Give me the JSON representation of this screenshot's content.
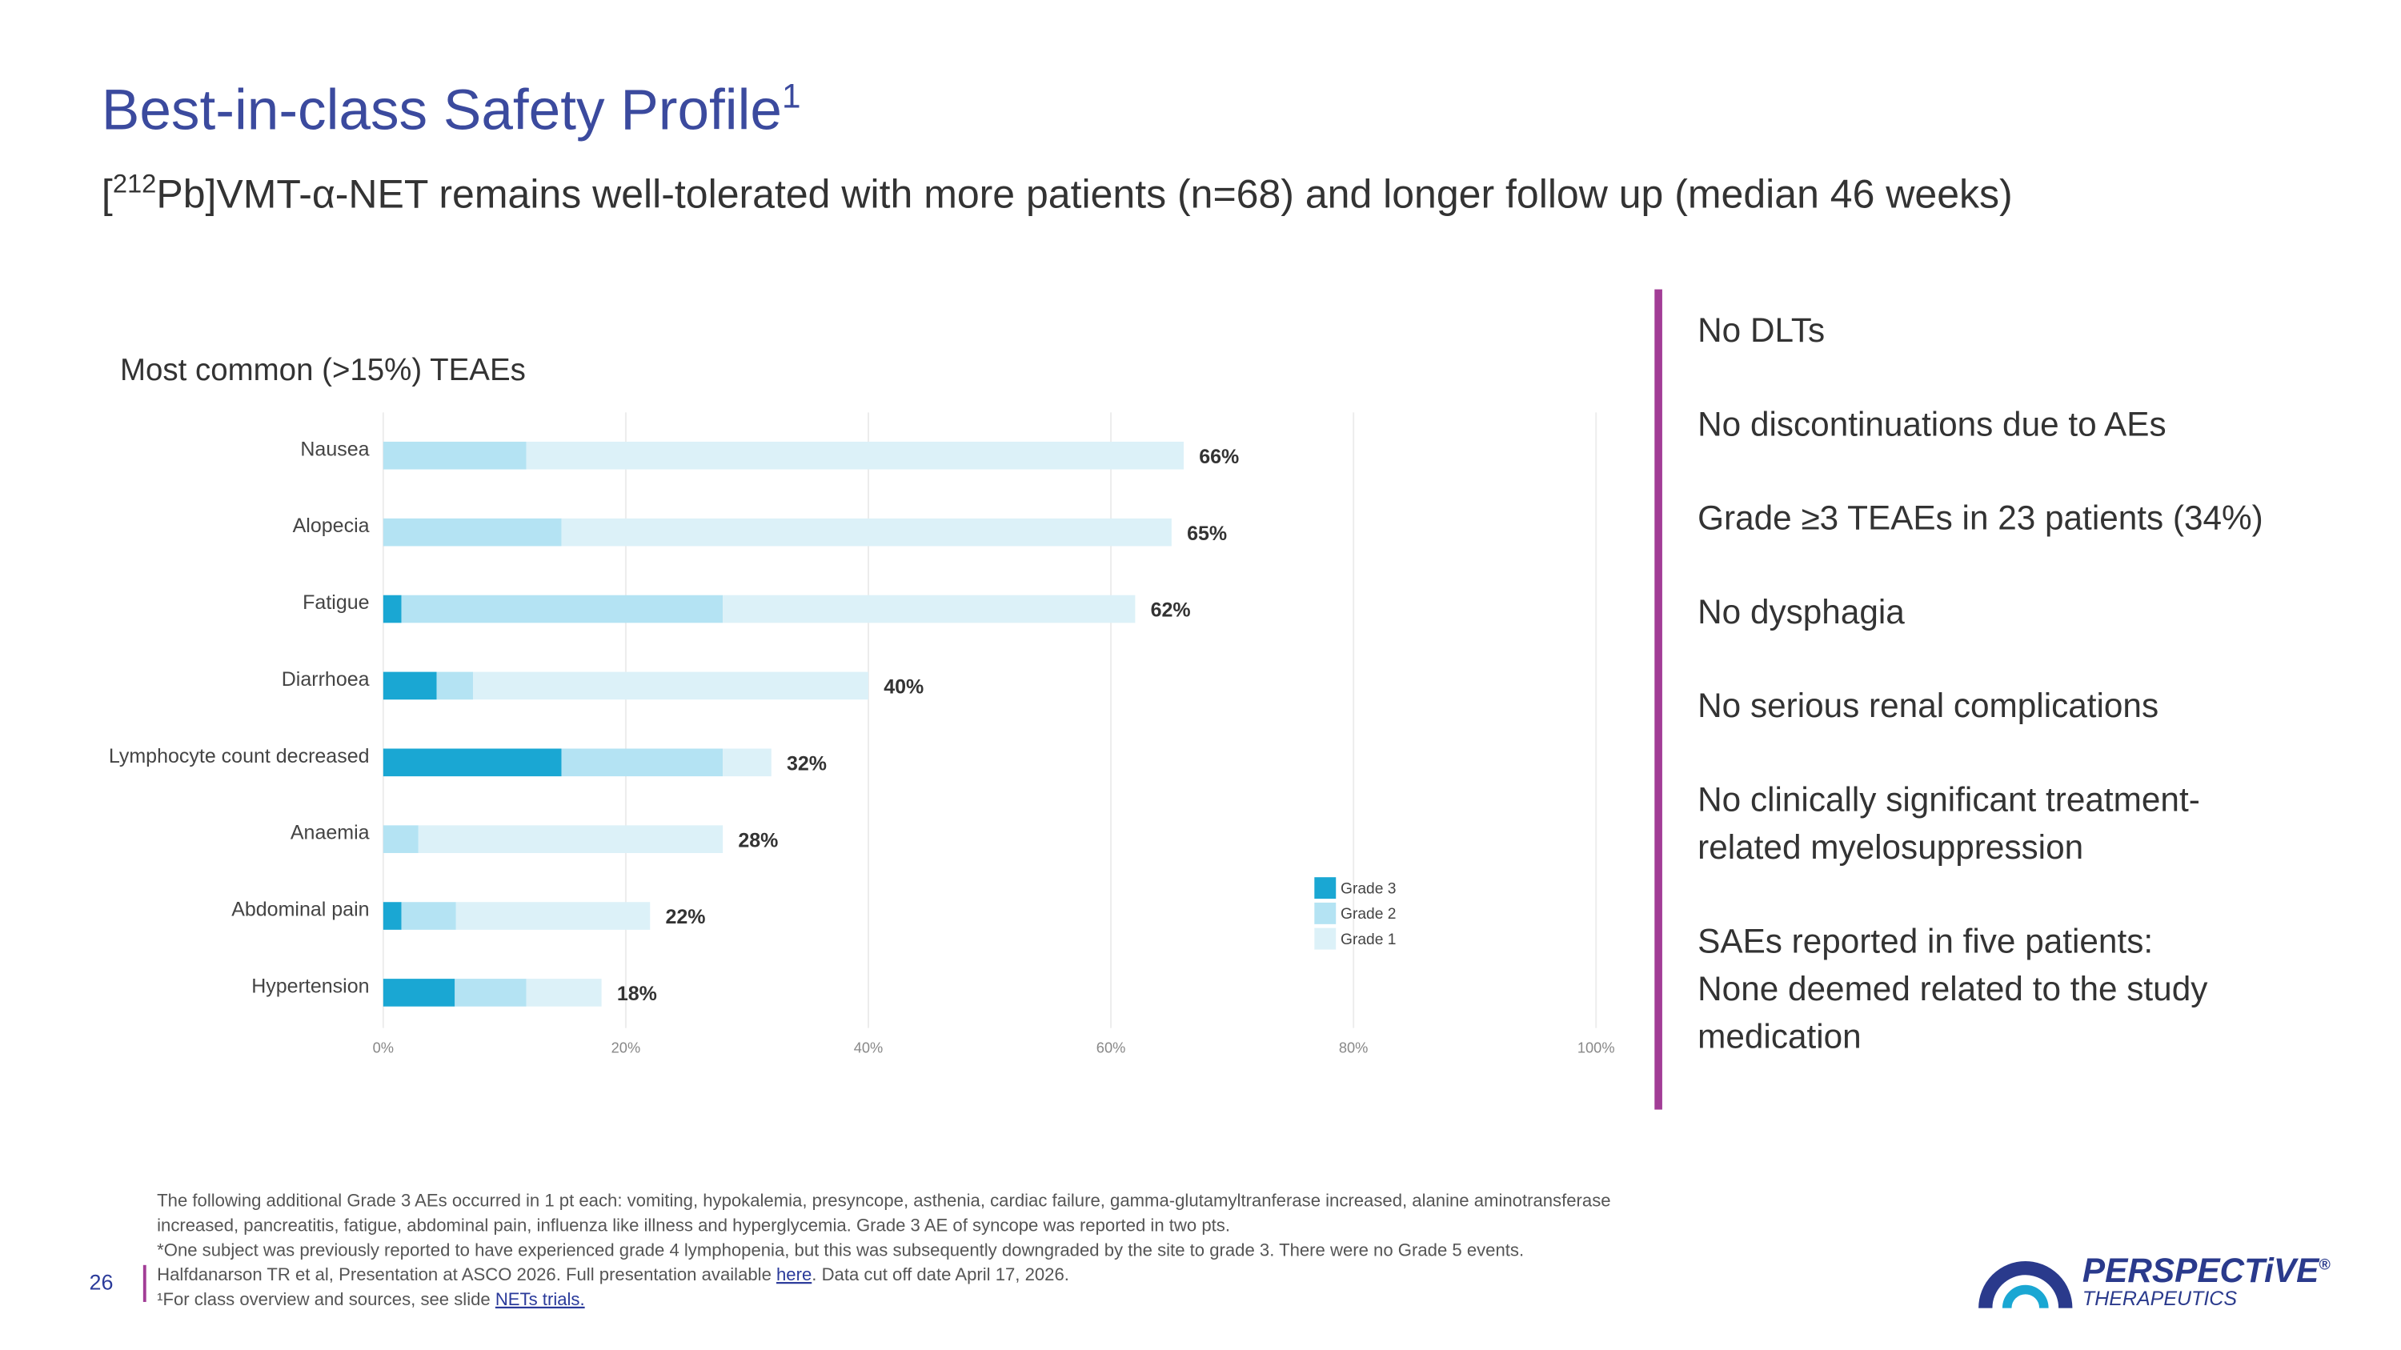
{
  "header": {
    "title": "Best-in-class Safety Profile",
    "title_sup": "1",
    "subtitle_parts": [
      "[",
      "212",
      "Pb]VMT-α-NET remains well-tolerated with more patients (n=68) and longer follow up (median 46 weeks)"
    ]
  },
  "chart_data": {
    "type": "stacked-barh",
    "title": "Most common (>15%) TEAEs",
    "categories": [
      "Nausea",
      "Alopecia",
      "Fatigue",
      "Diarrhoea",
      "Lymphocyte count decreased",
      "Anaemia",
      "Abdominal pain",
      "Hypertension"
    ],
    "series": [
      {
        "name": "Grade 3",
        "color": "#1aa7d3",
        "values": [
          0,
          0,
          1.5,
          4.4,
          14.7,
          0,
          1.5,
          5.9
        ]
      },
      {
        "name": "Grade 2",
        "color": "#b4e3f3",
        "values": [
          11.8,
          14.7,
          26.5,
          3.0,
          13.3,
          2.9,
          4.5,
          5.9
        ]
      },
      {
        "name": "Grade 1",
        "color": "#dcf1f8",
        "values": [
          54.2,
          50.3,
          34.0,
          32.6,
          4.0,
          25.1,
          16.0,
          6.2
        ]
      }
    ],
    "totals": {
      "values": [
        66,
        65,
        62,
        40,
        32,
        28,
        22,
        18
      ],
      "value_labels": [
        "66%",
        "65%",
        "62%",
        "40%",
        "32%",
        "28%",
        "22%",
        "18%"
      ]
    },
    "xlim": [
      0,
      100
    ],
    "xticks": [
      {
        "value": 0,
        "label": "0%"
      },
      {
        "value": 20,
        "label": "20%"
      },
      {
        "value": 40,
        "label": "40%"
      },
      {
        "value": 60,
        "label": "60%"
      },
      {
        "value": 80,
        "label": "80%"
      },
      {
        "value": 100,
        "label": "100%"
      }
    ],
    "grid": true,
    "legend": "right"
  },
  "bullets": [
    [
      "No DLTs"
    ],
    [
      "No discontinuations due to AEs"
    ],
    [
      "Grade ≥3 TEAEs in 23 patients (34%)"
    ],
    [
      "No dysphagia"
    ],
    [
      "No serious renal complications"
    ],
    [
      "No clinically significant treatment-",
      "related myelosuppression"
    ],
    [
      "SAEs reported in five patients:",
      "None deemed related to the study",
      "medication"
    ]
  ],
  "footnotes": [
    [
      "The following additional Grade 3 AEs occurred in 1 pt each: vomiting, hypokalemia, presyncope, asthenia, cardiac failure, gamma-glutamyltranferase increased, alanine aminotransferase"
    ],
    [
      "increased, pancreatitis, fatigue, abdominal pain, influenza like illness and hyperglycemia. Grade 3 AE of syncope was reported in two pts."
    ],
    [
      "*One subject was previously reported to have experienced grade 4 lymphopenia, but this was subsequently downgraded by the site to grade 3. There were no Grade 5 events."
    ],
    [
      "Halfdanarson TR et al, Presentation at ASCO 2026. Full presentation available ",
      "here",
      ". Data cut off date April 17, 2026."
    ],
    [
      "¹For class overview and sources, see slide ",
      "NETs trials."
    ]
  ],
  "page_number": "26",
  "logo": {
    "name": "PERSPECTiVE",
    "mark": "®",
    "tagline": "THERAPEUTICS"
  }
}
